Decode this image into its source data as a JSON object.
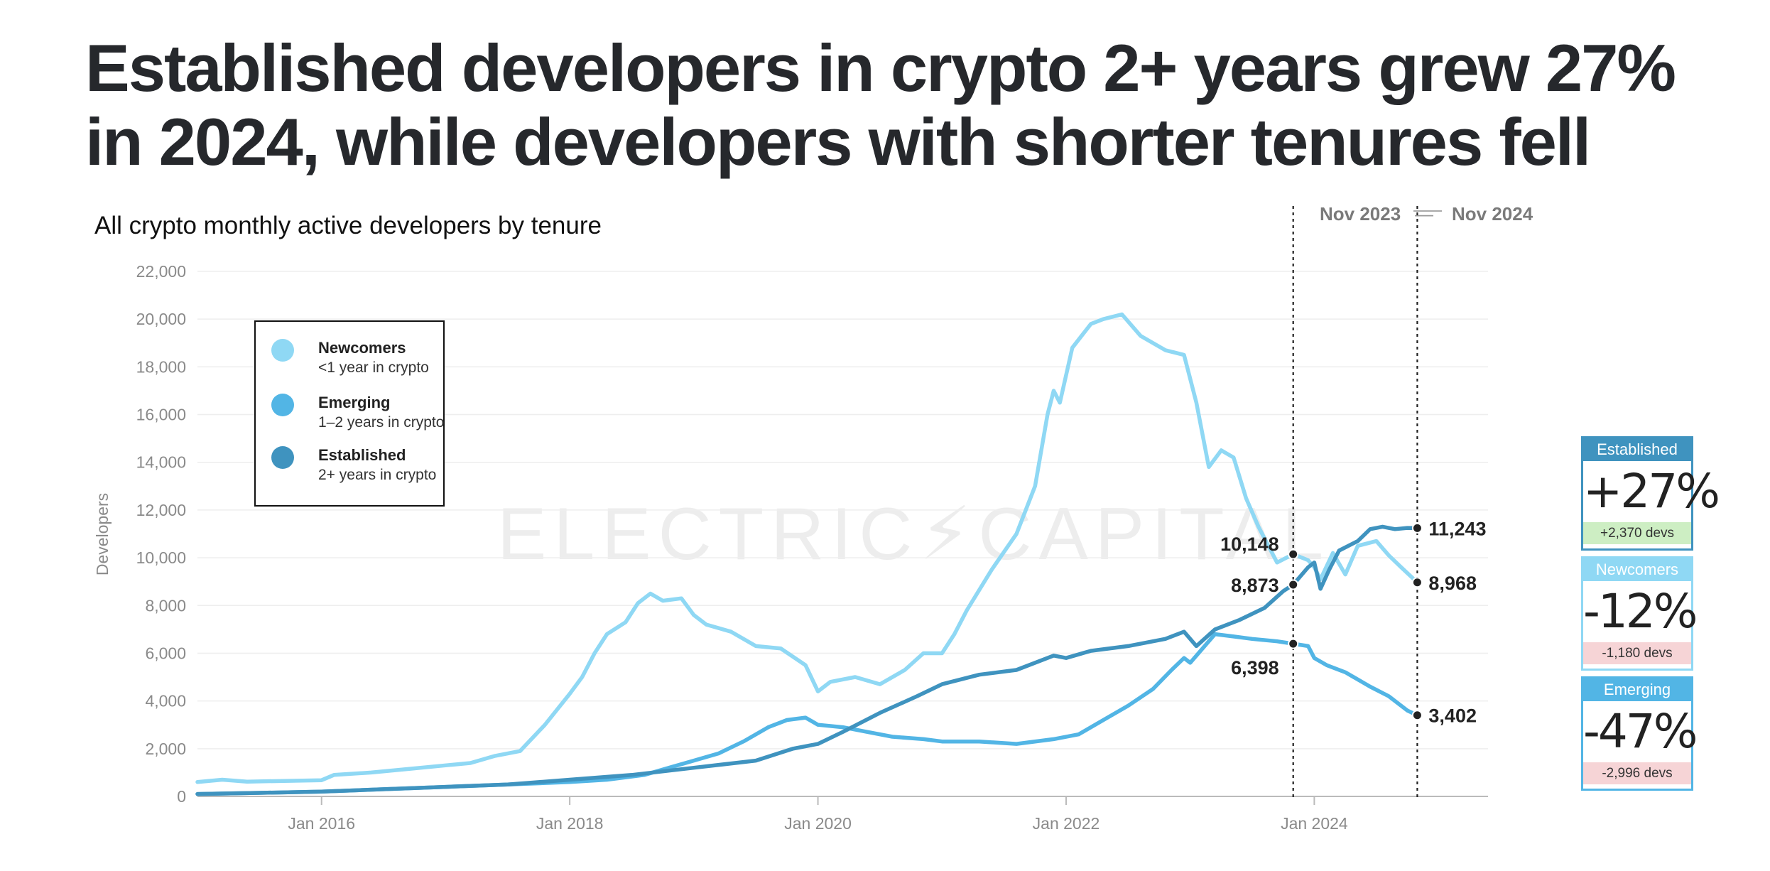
{
  "title": "Established developers in crypto 2+ years grew 27% in 2024, while developers with shorter tenures fell",
  "subtitle": "All crypto monthly active developers by tenure",
  "watermark": "ELECTRIC⚡CAPITAL",
  "range": {
    "start": "Nov 2023",
    "sep": "—",
    "end": "Nov 2024"
  },
  "legend": [
    {
      "name": "Newcomers",
      "desc": "<1 year in crypto",
      "color": "#8fd8f4"
    },
    {
      "name": "Emerging",
      "desc": "1–2 years in crypto",
      "color": "#52b5e5"
    },
    {
      "name": "Established",
      "desc": "2+ years in crypto",
      "color": "#3f93bf"
    }
  ],
  "cards": [
    {
      "name": "Established",
      "pct": "+27%",
      "devs": "+2,370 devs",
      "color": "#3f93bf",
      "foot_bg": "#cdeec3"
    },
    {
      "name": "Newcomers",
      "pct": "-12%",
      "devs": "-1,180 devs",
      "color": "#8fd8f4",
      "foot_bg": "#f6d4d6"
    },
    {
      "name": "Emerging",
      "pct": "-47%",
      "devs": "-2,996 devs",
      "color": "#52b5e5",
      "foot_bg": "#f6d4d6"
    }
  ],
  "chart_data": {
    "type": "line",
    "title": "All crypto monthly active developers by tenure",
    "ylabel": "Developers",
    "xlabel": "",
    "ylim": [
      0,
      22000
    ],
    "xlim": [
      2015.0,
      2025.4
    ],
    "y_ticks": [
      "0",
      "2,000",
      "4,000",
      "6,000",
      "8,000",
      "10,000",
      "12,000",
      "14,000",
      "16,000",
      "18,000",
      "20,000",
      "22,000"
    ],
    "x_ticks": [
      {
        "label": "Jan 2016",
        "x": 2016.0
      },
      {
        "label": "Jan 2018",
        "x": 2018.0
      },
      {
        "label": "Jan 2020",
        "x": 2020.0
      },
      {
        "label": "Jan 2022",
        "x": 2022.0
      },
      {
        "label": "Jan 2024",
        "x": 2024.0
      }
    ],
    "markers": [
      {
        "label": "Nov 2023",
        "x": 2023.83
      },
      {
        "label": "Nov 2024",
        "x": 2024.83
      }
    ],
    "series": [
      {
        "name": "Newcomers",
        "color": "#8fd8f4",
        "points": [
          [
            2015.0,
            600
          ],
          [
            2015.2,
            700
          ],
          [
            2015.4,
            620
          ],
          [
            2015.7,
            650
          ],
          [
            2016.0,
            680
          ],
          [
            2016.1,
            900
          ],
          [
            2016.4,
            1000
          ],
          [
            2016.7,
            1150
          ],
          [
            2017.0,
            1300
          ],
          [
            2017.2,
            1400
          ],
          [
            2017.4,
            1700
          ],
          [
            2017.6,
            1900
          ],
          [
            2017.8,
            3000
          ],
          [
            2018.0,
            4300
          ],
          [
            2018.1,
            5000
          ],
          [
            2018.2,
            6000
          ],
          [
            2018.3,
            6800
          ],
          [
            2018.45,
            7300
          ],
          [
            2018.55,
            8100
          ],
          [
            2018.65,
            8500
          ],
          [
            2018.75,
            8200
          ],
          [
            2018.9,
            8300
          ],
          [
            2019.0,
            7600
          ],
          [
            2019.1,
            7200
          ],
          [
            2019.3,
            6900
          ],
          [
            2019.5,
            6300
          ],
          [
            2019.7,
            6200
          ],
          [
            2019.9,
            5500
          ],
          [
            2020.0,
            4400
          ],
          [
            2020.1,
            4800
          ],
          [
            2020.3,
            5000
          ],
          [
            2020.5,
            4700
          ],
          [
            2020.7,
            5300
          ],
          [
            2020.85,
            6000
          ],
          [
            2021.0,
            6000
          ],
          [
            2021.1,
            6800
          ],
          [
            2021.2,
            7800
          ],
          [
            2021.4,
            9500
          ],
          [
            2021.6,
            11000
          ],
          [
            2021.75,
            13000
          ],
          [
            2021.85,
            16000
          ],
          [
            2021.9,
            17000
          ],
          [
            2021.95,
            16500
          ],
          [
            2022.05,
            18800
          ],
          [
            2022.2,
            19800
          ],
          [
            2022.3,
            20000
          ],
          [
            2022.45,
            20200
          ],
          [
            2022.6,
            19300
          ],
          [
            2022.8,
            18700
          ],
          [
            2022.95,
            18500
          ],
          [
            2023.05,
            16500
          ],
          [
            2023.15,
            13800
          ],
          [
            2023.25,
            14500
          ],
          [
            2023.35,
            14200
          ],
          [
            2023.45,
            12500
          ],
          [
            2023.55,
            11300
          ],
          [
            2023.7,
            9800
          ],
          [
            2023.83,
            10148
          ],
          [
            2023.95,
            9900
          ],
          [
            2024.0,
            9600
          ],
          [
            2024.05,
            9100
          ],
          [
            2024.15,
            10200
          ],
          [
            2024.25,
            9300
          ],
          [
            2024.35,
            10500
          ],
          [
            2024.5,
            10700
          ],
          [
            2024.6,
            10100
          ],
          [
            2024.7,
            9600
          ],
          [
            2024.83,
            8968
          ]
        ]
      },
      {
        "name": "Emerging",
        "color": "#52b5e5",
        "points": [
          [
            2015.0,
            100
          ],
          [
            2015.5,
            150
          ],
          [
            2016.0,
            200
          ],
          [
            2016.5,
            300
          ],
          [
            2017.0,
            400
          ],
          [
            2017.5,
            500
          ],
          [
            2018.0,
            600
          ],
          [
            2018.3,
            700
          ],
          [
            2018.6,
            900
          ],
          [
            2018.8,
            1200
          ],
          [
            2019.0,
            1500
          ],
          [
            2019.2,
            1800
          ],
          [
            2019.4,
            2300
          ],
          [
            2019.6,
            2900
          ],
          [
            2019.75,
            3200
          ],
          [
            2019.9,
            3300
          ],
          [
            2020.0,
            3000
          ],
          [
            2020.2,
            2900
          ],
          [
            2020.4,
            2700
          ],
          [
            2020.6,
            2500
          ],
          [
            2020.85,
            2400
          ],
          [
            2021.0,
            2300
          ],
          [
            2021.3,
            2300
          ],
          [
            2021.6,
            2200
          ],
          [
            2021.9,
            2400
          ],
          [
            2022.1,
            2600
          ],
          [
            2022.3,
            3200
          ],
          [
            2022.5,
            3800
          ],
          [
            2022.7,
            4500
          ],
          [
            2022.85,
            5300
          ],
          [
            2022.95,
            5800
          ],
          [
            2023.0,
            5600
          ],
          [
            2023.1,
            6200
          ],
          [
            2023.2,
            6800
          ],
          [
            2023.35,
            6700
          ],
          [
            2023.5,
            6600
          ],
          [
            2023.7,
            6500
          ],
          [
            2023.83,
            6398
          ],
          [
            2023.95,
            6300
          ],
          [
            2024.0,
            5800
          ],
          [
            2024.1,
            5500
          ],
          [
            2024.25,
            5200
          ],
          [
            2024.45,
            4600
          ],
          [
            2024.6,
            4200
          ],
          [
            2024.75,
            3600
          ],
          [
            2024.83,
            3402
          ]
        ]
      },
      {
        "name": "Established",
        "color": "#3f93bf",
        "points": [
          [
            2015.0,
            100
          ],
          [
            2015.5,
            150
          ],
          [
            2016.0,
            200
          ],
          [
            2016.5,
            300
          ],
          [
            2017.0,
            400
          ],
          [
            2017.5,
            500
          ],
          [
            2018.0,
            700
          ],
          [
            2018.5,
            900
          ],
          [
            2019.0,
            1200
          ],
          [
            2019.5,
            1500
          ],
          [
            2019.8,
            2000
          ],
          [
            2020.0,
            2200
          ],
          [
            2020.2,
            2700
          ],
          [
            2020.5,
            3500
          ],
          [
            2020.8,
            4200
          ],
          [
            2021.0,
            4700
          ],
          [
            2021.3,
            5100
          ],
          [
            2021.6,
            5300
          ],
          [
            2021.9,
            5900
          ],
          [
            2022.0,
            5800
          ],
          [
            2022.2,
            6100
          ],
          [
            2022.5,
            6300
          ],
          [
            2022.8,
            6600
          ],
          [
            2022.95,
            6900
          ],
          [
            2023.05,
            6300
          ],
          [
            2023.2,
            7000
          ],
          [
            2023.4,
            7400
          ],
          [
            2023.6,
            7900
          ],
          [
            2023.75,
            8600
          ],
          [
            2023.83,
            8873
          ],
          [
            2023.95,
            9600
          ],
          [
            2024.0,
            9800
          ],
          [
            2024.05,
            8700
          ],
          [
            2024.12,
            9500
          ],
          [
            2024.2,
            10300
          ],
          [
            2024.35,
            10700
          ],
          [
            2024.45,
            11200
          ],
          [
            2024.55,
            11300
          ],
          [
            2024.65,
            11200
          ],
          [
            2024.75,
            11250
          ],
          [
            2024.83,
            11243
          ]
        ]
      }
    ],
    "callouts": [
      {
        "series": "Newcomers",
        "x": 2023.83,
        "y": 10148,
        "label": "10,148"
      },
      {
        "series": "Established",
        "x": 2023.83,
        "y": 8873,
        "label": "8,873"
      },
      {
        "series": "Emerging",
        "x": 2023.83,
        "y": 6398,
        "label": "6,398"
      },
      {
        "series": "Established",
        "x": 2024.83,
        "y": 11243,
        "label": "11,243"
      },
      {
        "series": "Newcomers",
        "x": 2024.83,
        "y": 8968,
        "label": "8,968"
      },
      {
        "series": "Emerging",
        "x": 2024.83,
        "y": 3402,
        "label": "3,402"
      }
    ]
  }
}
